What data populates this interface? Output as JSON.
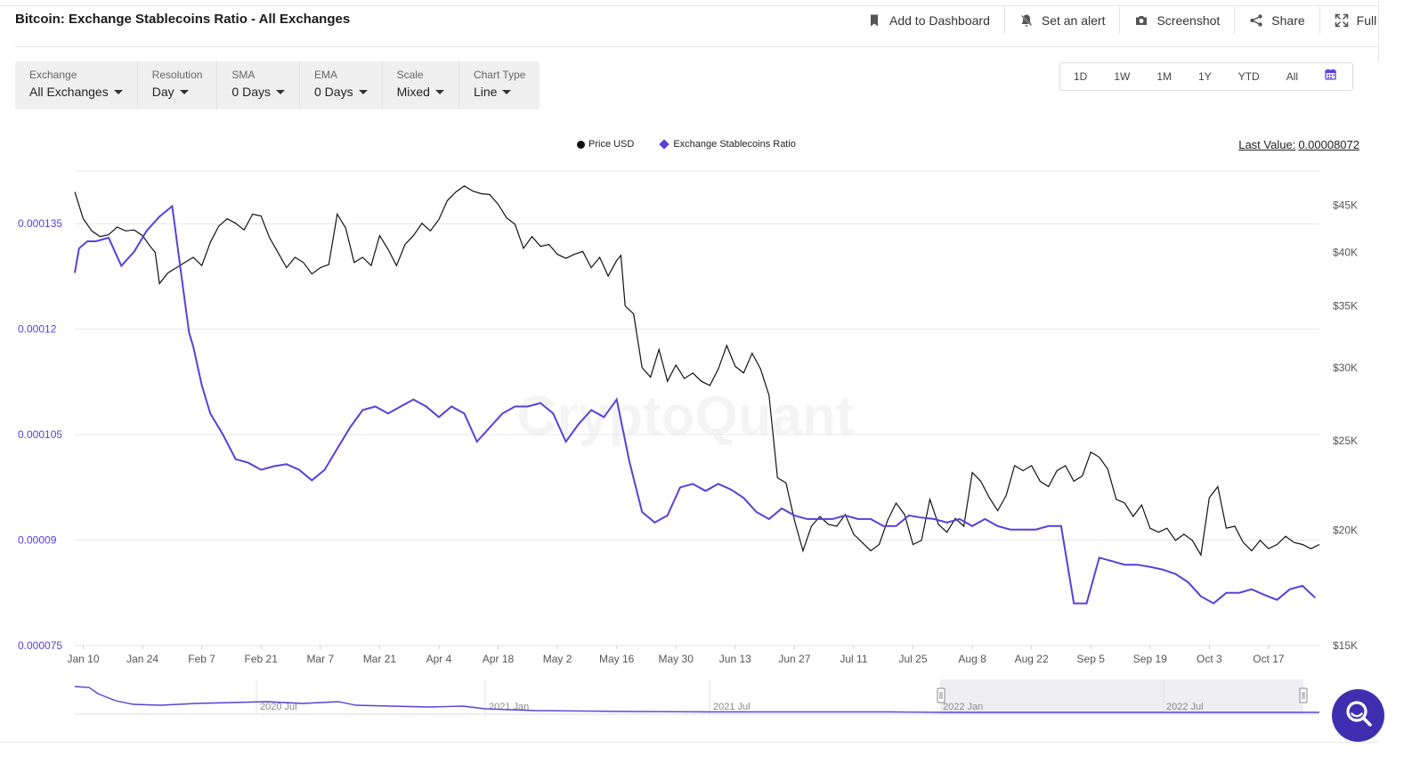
{
  "header": {
    "title": "Bitcoin: Exchange Stablecoins Ratio - All Exchanges",
    "actions": [
      {
        "label": "Add to Dashboard",
        "icon": "bookmark-icon"
      },
      {
        "label": "Set an alert",
        "icon": "bell-icon"
      },
      {
        "label": "Screenshot",
        "icon": "camera-icon"
      },
      {
        "label": "Share",
        "icon": "share-icon"
      },
      {
        "label": "Full",
        "icon": "expand-icon"
      }
    ]
  },
  "controls": [
    {
      "label": "Exchange",
      "value": "All Exchanges"
    },
    {
      "label": "Resolution",
      "value": "Day"
    },
    {
      "label": "SMA",
      "value": "0 Days"
    },
    {
      "label": "EMA",
      "value": "0 Days"
    },
    {
      "label": "Scale",
      "value": "Mixed"
    },
    {
      "label": "Chart Type",
      "value": "Line"
    }
  ],
  "ranges": [
    "1D",
    "1W",
    "1M",
    "1Y",
    "YTD",
    "All"
  ],
  "calendar_icon": "calendar-icon",
  "legend": [
    {
      "label": "Price USD",
      "color": "#111111",
      "marker": "circle"
    },
    {
      "label": "Exchange Stablecoins Ratio",
      "color": "#5b3fd9",
      "marker": "diamond"
    }
  ],
  "last_value": {
    "label": "Last Value:",
    "value": "0.00008072"
  },
  "watermark": "CryptoQuant",
  "chat_icon": "search-icon",
  "colors": {
    "ratio": "#5b3fd9",
    "price": "#111111",
    "accent": "#3f2fb0",
    "grid": "#e6e6e6"
  },
  "chart_data": {
    "type": "line",
    "x_tick_labels": [
      "Jan 10",
      "Jan 24",
      "Feb 7",
      "Feb 21",
      "Mar 7",
      "Mar 21",
      "Apr 4",
      "Apr 18",
      "May 2",
      "May 16",
      "May 30",
      "Jun 13",
      "Jun 27",
      "Jul 11",
      "Jul 25",
      "Aug 8",
      "Aug 22",
      "Sep 5",
      "Sep 19",
      "Oct 3",
      "Oct 17"
    ],
    "left_axis": {
      "ticks": [
        "0.000075",
        "0.00009",
        "0.000105",
        "0.00012",
        "0.000135"
      ],
      "ylim": [
        7.5e-05,
        0.0001425
      ],
      "color": "#5b3fd9"
    },
    "right_axis": {
      "ticks": [
        "$15K",
        "$20K",
        "$25K",
        "$30K",
        "$35K",
        "$40K",
        "$45K"
      ],
      "scale": "log",
      "ylim": [
        15000,
        49000
      ]
    },
    "x_range_days": [
      0,
      294
    ],
    "grid": true,
    "legend_position": "top-center",
    "series": [
      {
        "name": "Exchange Stablecoins Ratio",
        "axis": "left",
        "x": [
          0,
          1,
          3,
          5,
          8,
          11,
          14,
          17,
          20,
          23,
          26,
          27,
          28,
          30,
          32,
          35,
          38,
          41,
          44,
          47,
          50,
          53,
          56,
          59,
          62,
          65,
          68,
          71,
          74,
          77,
          80,
          83,
          86,
          89,
          92,
          95,
          98,
          101,
          104,
          107,
          110,
          113,
          116,
          119,
          122,
          125,
          128,
          131,
          134,
          137,
          140,
          143,
          146,
          149,
          152,
          155,
          158,
          161,
          164,
          167,
          170,
          173,
          176,
          179,
          182,
          185,
          188,
          191,
          194,
          197,
          200,
          203,
          206,
          209,
          212,
          215,
          218,
          221,
          224,
          227,
          230,
          233,
          236,
          239,
          242,
          245,
          248,
          251,
          254,
          257,
          260,
          263,
          266,
          269,
          272,
          275,
          278,
          281,
          284,
          287,
          290,
          293
        ],
        "y": [
          0.000128,
          0.0001315,
          0.0001325,
          0.0001325,
          0.000133,
          0.000129,
          0.000131,
          0.000134,
          0.000136,
          0.0001375,
          0.000124,
          0.0001195,
          0.0001175,
          0.000112,
          0.000108,
          0.000105,
          0.0001015,
          0.000101,
          0.0001,
          0.0001005,
          0.0001008,
          0.0001,
          9.85e-05,
          0.0001,
          0.000103,
          0.000106,
          0.0001085,
          0.000109,
          0.000108,
          0.000109,
          0.00011,
          0.000109,
          0.0001075,
          0.000109,
          0.000108,
          0.000104,
          0.000106,
          0.000108,
          0.000109,
          0.000109,
          0.0001095,
          0.000108,
          0.000104,
          0.0001065,
          0.0001085,
          0.0001075,
          0.00011,
          0.0001012,
          9.4e-05,
          9.25e-05,
          9.35e-05,
          9.75e-05,
          9.8e-05,
          9.7e-05,
          9.8e-05,
          9.72e-05,
          9.6e-05,
          9.4e-05,
          9.3e-05,
          9.45e-05,
          9.35e-05,
          9.3e-05,
          9.3e-05,
          9.3e-05,
          9.35e-05,
          9.3e-05,
          9.3e-05,
          9.2e-05,
          9.2e-05,
          9.35e-05,
          9.32e-05,
          9.3e-05,
          9.25e-05,
          9.3e-05,
          9.2e-05,
          9.3e-05,
          9.2e-05,
          9.15e-05,
          9.15e-05,
          9.15e-05,
          9.2e-05,
          9.2e-05,
          8.1e-05,
          8.1e-05,
          8.75e-05,
          8.7e-05,
          8.65e-05,
          8.65e-05,
          8.62e-05,
          8.58e-05,
          8.52e-05,
          8.4e-05,
          8.2e-05,
          8.1e-05,
          8.25e-05,
          8.25e-05,
          8.3e-05,
          8.22e-05,
          8.15e-05,
          8.3e-05,
          8.35e-05,
          8.18e-05
        ]
      },
      {
        "name": "Price USD",
        "axis": "right",
        "x": [
          0,
          2,
          4,
          6,
          8,
          10,
          12,
          14,
          16,
          18,
          19,
          20,
          22,
          24,
          26,
          28,
          30,
          32,
          34,
          36,
          38,
          40,
          42,
          44,
          46,
          48,
          50,
          52,
          54,
          56,
          58,
          60,
          62,
          64,
          66,
          68,
          70,
          72,
          74,
          76,
          78,
          80,
          82,
          84,
          86,
          88,
          90,
          92,
          94,
          96,
          98,
          100,
          102,
          104,
          106,
          108,
          110,
          112,
          114,
          116,
          118,
          120,
          122,
          124,
          126,
          128,
          129,
          130,
          132,
          134,
          136,
          138,
          140,
          142,
          144,
          146,
          148,
          150,
          152,
          154,
          156,
          158,
          160,
          162,
          164,
          166,
          168,
          170,
          172,
          174,
          176,
          178,
          180,
          182,
          184,
          186,
          188,
          190,
          192,
          194,
          196,
          198,
          200,
          202,
          204,
          206,
          208,
          210,
          212,
          214,
          216,
          218,
          220,
          222,
          224,
          226,
          228,
          230,
          232,
          234,
          236,
          238,
          240,
          242,
          244,
          246,
          248,
          250,
          252,
          254,
          256,
          258,
          260,
          262,
          264,
          266,
          268,
          270,
          272,
          274,
          276,
          278,
          280,
          282,
          284,
          286,
          288,
          290,
          292,
          294
        ],
        "y": [
          46500,
          43500,
          42200,
          41600,
          41800,
          42600,
          42200,
          42300,
          41700,
          40500,
          40000,
          37000,
          38000,
          38500,
          39000,
          39500,
          38700,
          41000,
          42700,
          43500,
          43000,
          42300,
          44000,
          43800,
          41500,
          40000,
          38500,
          39500,
          39000,
          37900,
          38500,
          38800,
          44000,
          42500,
          39000,
          39500,
          38700,
          41700,
          40300,
          38700,
          40800,
          41700,
          43000,
          42200,
          43400,
          45500,
          46500,
          47200,
          46600,
          46300,
          46200,
          45100,
          43600,
          42900,
          40400,
          41600,
          40600,
          40800,
          39800,
          39400,
          39800,
          40100,
          38500,
          39500,
          37700,
          39200,
          39700,
          35000,
          34300,
          30000,
          29300,
          31400,
          29000,
          30200,
          29200,
          29600,
          29000,
          28700,
          29900,
          31700,
          30100,
          29600,
          31100,
          29900,
          28000,
          22800,
          22500,
          20500,
          19000,
          20200,
          20700,
          20300,
          20200,
          20800,
          19800,
          19400,
          19000,
          19300,
          20500,
          21400,
          20800,
          19300,
          19500,
          21600,
          20300,
          19900,
          20600,
          20200,
          23100,
          22600,
          21700,
          21000,
          21800,
          23500,
          23200,
          23500,
          22600,
          22300,
          23200,
          23500,
          22600,
          22900,
          24300,
          24000,
          23300,
          21600,
          21400,
          20700,
          21300,
          20100,
          19900,
          20100,
          19500,
          19800,
          19500,
          18800,
          21700,
          22300,
          20100,
          20200,
          19400,
          19000,
          19500,
          19100,
          19300,
          19700,
          19400,
          19300,
          19100,
          19300
        ]
      }
    ]
  }
}
